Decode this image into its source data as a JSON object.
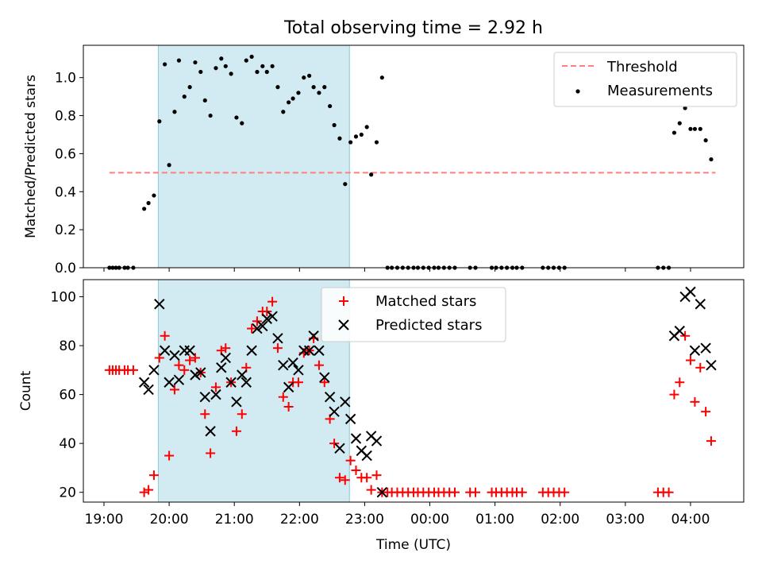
{
  "chart_data": [
    {
      "type": "scatter",
      "title": "Total observing time = 2.92 h",
      "ylabel": "Matched/Predicted stars",
      "xlabel": "",
      "xlim": [
        "18:41",
        "04:49"
      ],
      "ylim": [
        0,
        1.17
      ],
      "yticks": [
        0.0,
        0.2,
        0.4,
        0.6,
        0.8,
        1.0
      ],
      "ytick_labels": [
        "0.0",
        "0.2",
        "0.4",
        "0.6",
        "0.8",
        "1.0"
      ],
      "shaded_interval": [
        "19:50",
        "22:46"
      ],
      "threshold": {
        "name": "Threshold",
        "value": 0.5,
        "x_range": [
          "19:05",
          "04:23"
        ],
        "color": "#ff7f7f"
      },
      "legend": {
        "position": "top-right",
        "entries": [
          "Threshold",
          "Measurements"
        ]
      },
      "series": [
        {
          "name": "Measurements",
          "color": "#000000",
          "marker": "dot",
          "points": [
            [
              "19:05",
              0.0
            ],
            [
              "19:08",
              0.0
            ],
            [
              "19:11",
              0.0
            ],
            [
              "19:14",
              0.0
            ],
            [
              "19:19",
              0.0
            ],
            [
              "19:22",
              0.0
            ],
            [
              "19:27",
              0.0
            ],
            [
              "19:37",
              0.31
            ],
            [
              "19:41",
              0.34
            ],
            [
              "19:46",
              0.38
            ],
            [
              "19:51",
              0.77
            ],
            [
              "19:56",
              1.07
            ],
            [
              "20:00",
              0.54
            ],
            [
              "20:05",
              0.82
            ],
            [
              "20:09",
              1.09
            ],
            [
              "20:14",
              0.9
            ],
            [
              "20:19",
              0.95
            ],
            [
              "20:24",
              1.08
            ],
            [
              "20:29",
              1.03
            ],
            [
              "20:33",
              0.88
            ],
            [
              "20:38",
              0.8
            ],
            [
              "20:43",
              1.05
            ],
            [
              "20:48",
              1.1
            ],
            [
              "20:52",
              1.06
            ],
            [
              "20:57",
              1.02
            ],
            [
              "21:02",
              0.79
            ],
            [
              "21:07",
              0.76
            ],
            [
              "21:11",
              1.09
            ],
            [
              "21:16",
              1.11
            ],
            [
              "21:21",
              1.03
            ],
            [
              "21:26",
              1.06
            ],
            [
              "21:30",
              1.03
            ],
            [
              "21:35",
              1.06
            ],
            [
              "21:40",
              0.95
            ],
            [
              "21:45",
              0.82
            ],
            [
              "21:50",
              0.87
            ],
            [
              "21:54",
              0.89
            ],
            [
              "21:59",
              0.92
            ],
            [
              "22:04",
              1.0
            ],
            [
              "22:09",
              1.01
            ],
            [
              "22:13",
              0.95
            ],
            [
              "22:18",
              0.92
            ],
            [
              "22:23",
              0.95
            ],
            [
              "22:28",
              0.85
            ],
            [
              "22:32",
              0.75
            ],
            [
              "22:37",
              0.68
            ],
            [
              "22:42",
              0.44
            ],
            [
              "22:47",
              0.66
            ],
            [
              "22:52",
              0.69
            ],
            [
              "22:57",
              0.7
            ],
            [
              "23:02",
              0.74
            ],
            [
              "23:06",
              0.49
            ],
            [
              "23:11",
              0.66
            ],
            [
              "23:16",
              1.0
            ],
            [
              "23:21",
              0.0
            ],
            [
              "23:25",
              0.0
            ],
            [
              "23:30",
              0.0
            ],
            [
              "23:35",
              0.0
            ],
            [
              "23:40",
              0.0
            ],
            [
              "23:45",
              0.0
            ],
            [
              "23:49",
              0.0
            ],
            [
              "23:54",
              0.0
            ],
            [
              "23:59",
              0.0
            ],
            [
              "00:04",
              0.0
            ],
            [
              "00:08",
              0.0
            ],
            [
              "00:13",
              0.0
            ],
            [
              "00:18",
              0.0
            ],
            [
              "00:23",
              0.0
            ],
            [
              "00:37",
              0.0
            ],
            [
              "00:42",
              0.0
            ],
            [
              "00:57",
              0.0
            ],
            [
              "01:01",
              0.0
            ],
            [
              "01:06",
              0.0
            ],
            [
              "01:11",
              0.0
            ],
            [
              "01:16",
              0.0
            ],
            [
              "01:20",
              0.0
            ],
            [
              "01:25",
              0.0
            ],
            [
              "01:44",
              0.0
            ],
            [
              "01:49",
              0.0
            ],
            [
              "01:54",
              0.0
            ],
            [
              "01:59",
              0.0
            ],
            [
              "02:04",
              0.0
            ],
            [
              "03:30",
              0.0
            ],
            [
              "03:35",
              0.0
            ],
            [
              "03:40",
              0.0
            ],
            [
              "03:45",
              0.71
            ],
            [
              "03:50",
              0.76
            ],
            [
              "03:55",
              0.84
            ],
            [
              "04:00",
              0.73
            ],
            [
              "04:04",
              0.73
            ],
            [
              "04:09",
              0.73
            ],
            [
              "04:14",
              0.67
            ],
            [
              "04:19",
              0.57
            ]
          ]
        }
      ]
    },
    {
      "type": "scatter",
      "title": "",
      "ylabel": "Count",
      "xlabel": "Time (UTC)",
      "xlim": [
        "18:41",
        "04:49"
      ],
      "ylim": [
        16,
        107
      ],
      "yticks": [
        20,
        40,
        60,
        80,
        100
      ],
      "ytick_labels": [
        "20",
        "40",
        "60",
        "80",
        "100"
      ],
      "xticks": [
        "19:00",
        "20:00",
        "21:00",
        "22:00",
        "23:00",
        "00:00",
        "01:00",
        "02:00",
        "03:00",
        "04:00"
      ],
      "xtick_labels": [
        "19:00",
        "20:00",
        "21:00",
        "22:00",
        "23:00",
        "00:00",
        "01:00",
        "02:00",
        "03:00",
        "04:00"
      ],
      "shaded_interval": [
        "19:50",
        "22:46"
      ],
      "legend": {
        "position": "top-center",
        "entries": [
          "Matched stars",
          "Predicted stars"
        ]
      },
      "series": [
        {
          "name": "Matched stars",
          "color": "#ff0000",
          "marker": "plus",
          "points": [
            [
              "19:05",
              70
            ],
            [
              "19:08",
              70
            ],
            [
              "19:11",
              70
            ],
            [
              "19:14",
              70
            ],
            [
              "19:19",
              70
            ],
            [
              "19:22",
              70
            ],
            [
              "19:27",
              70
            ],
            [
              "19:37",
              20
            ],
            [
              "19:41",
              21
            ],
            [
              "19:46",
              27
            ],
            [
              "19:51",
              75
            ],
            [
              "19:56",
              84
            ],
            [
              "20:00",
              35
            ],
            [
              "20:05",
              62
            ],
            [
              "20:09",
              72
            ],
            [
              "20:14",
              70
            ],
            [
              "20:19",
              74
            ],
            [
              "20:24",
              75
            ],
            [
              "20:29",
              69
            ],
            [
              "20:33",
              52
            ],
            [
              "20:38",
              36
            ],
            [
              "20:43",
              63
            ],
            [
              "20:48",
              78
            ],
            [
              "20:52",
              79
            ],
            [
              "20:57",
              65
            ],
            [
              "21:02",
              45
            ],
            [
              "21:07",
              52
            ],
            [
              "21:11",
              71
            ],
            [
              "21:16",
              87
            ],
            [
              "21:21",
              90
            ],
            [
              "21:26",
              94
            ],
            [
              "21:30",
              94
            ],
            [
              "21:35",
              98
            ],
            [
              "21:40",
              79
            ],
            [
              "21:45",
              59
            ],
            [
              "21:50",
              55
            ],
            [
              "21:54",
              65
            ],
            [
              "21:59",
              65
            ],
            [
              "22:04",
              77
            ],
            [
              "22:09",
              78
            ],
            [
              "22:13",
              83
            ],
            [
              "22:18",
              72
            ],
            [
              "22:23",
              65
            ],
            [
              "22:28",
              50
            ],
            [
              "22:32",
              40
            ],
            [
              "22:37",
              26
            ],
            [
              "22:42",
              25
            ],
            [
              "22:47",
              33
            ],
            [
              "22:52",
              29
            ],
            [
              "22:57",
              26
            ],
            [
              "23:02",
              26
            ],
            [
              "23:06",
              21
            ],
            [
              "23:11",
              27
            ],
            [
              "23:16",
              20
            ],
            [
              "23:21",
              20
            ],
            [
              "23:25",
              20
            ],
            [
              "23:30",
              20
            ],
            [
              "23:35",
              20
            ],
            [
              "23:40",
              20
            ],
            [
              "23:45",
              20
            ],
            [
              "23:49",
              20
            ],
            [
              "23:54",
              20
            ],
            [
              "23:59",
              20
            ],
            [
              "00:04",
              20
            ],
            [
              "00:08",
              20
            ],
            [
              "00:13",
              20
            ],
            [
              "00:18",
              20
            ],
            [
              "00:23",
              20
            ],
            [
              "00:37",
              20
            ],
            [
              "00:42",
              20
            ],
            [
              "00:57",
              20
            ],
            [
              "01:01",
              20
            ],
            [
              "01:06",
              20
            ],
            [
              "01:11",
              20
            ],
            [
              "01:16",
              20
            ],
            [
              "01:20",
              20
            ],
            [
              "01:25",
              20
            ],
            [
              "01:44",
              20
            ],
            [
              "01:49",
              20
            ],
            [
              "01:54",
              20
            ],
            [
              "01:59",
              20
            ],
            [
              "02:04",
              20
            ],
            [
              "03:30",
              20
            ],
            [
              "03:35",
              20
            ],
            [
              "03:40",
              20
            ],
            [
              "03:45",
              60
            ],
            [
              "03:50",
              65
            ],
            [
              "03:55",
              84
            ],
            [
              "04:00",
              74
            ],
            [
              "04:04",
              57
            ],
            [
              "04:09",
              71
            ],
            [
              "04:14",
              53
            ],
            [
              "04:19",
              41
            ]
          ]
        },
        {
          "name": "Predicted stars",
          "color": "#000000",
          "marker": "x",
          "points": [
            [
              "19:37",
              65
            ],
            [
              "19:41",
              62
            ],
            [
              "19:46",
              70
            ],
            [
              "19:51",
              97
            ],
            [
              "19:56",
              78
            ],
            [
              "20:00",
              65
            ],
            [
              "20:05",
              76
            ],
            [
              "20:09",
              66
            ],
            [
              "20:14",
              78
            ],
            [
              "20:19",
              78
            ],
            [
              "20:24",
              68
            ],
            [
              "20:29",
              69
            ],
            [
              "20:33",
              59
            ],
            [
              "20:38",
              45
            ],
            [
              "20:43",
              60
            ],
            [
              "20:48",
              71
            ],
            [
              "20:52",
              75
            ],
            [
              "20:57",
              65
            ],
            [
              "21:02",
              57
            ],
            [
              "21:07",
              68
            ],
            [
              "21:11",
              65
            ],
            [
              "21:16",
              78
            ],
            [
              "21:21",
              87
            ],
            [
              "21:26",
              88
            ],
            [
              "21:30",
              91
            ],
            [
              "21:35",
              92
            ],
            [
              "21:40",
              83
            ],
            [
              "21:45",
              72
            ],
            [
              "21:50",
              63
            ],
            [
              "21:54",
              73
            ],
            [
              "21:59",
              70
            ],
            [
              "22:04",
              78
            ],
            [
              "22:09",
              78
            ],
            [
              "22:13",
              84
            ],
            [
              "22:18",
              78
            ],
            [
              "22:23",
              67
            ],
            [
              "22:28",
              59
            ],
            [
              "22:32",
              53
            ],
            [
              "22:37",
              38
            ],
            [
              "22:42",
              57
            ],
            [
              "22:47",
              50
            ],
            [
              "22:52",
              42
            ],
            [
              "22:57",
              37
            ],
            [
              "23:02",
              35
            ],
            [
              "23:06",
              43
            ],
            [
              "23:11",
              41
            ],
            [
              "23:16",
              20
            ],
            [
              "03:45",
              84
            ],
            [
              "03:50",
              86
            ],
            [
              "03:55",
              100
            ],
            [
              "04:00",
              102
            ],
            [
              "04:04",
              78
            ],
            [
              "04:09",
              97
            ],
            [
              "04:14",
              79
            ],
            [
              "04:19",
              72
            ]
          ]
        }
      ]
    }
  ]
}
